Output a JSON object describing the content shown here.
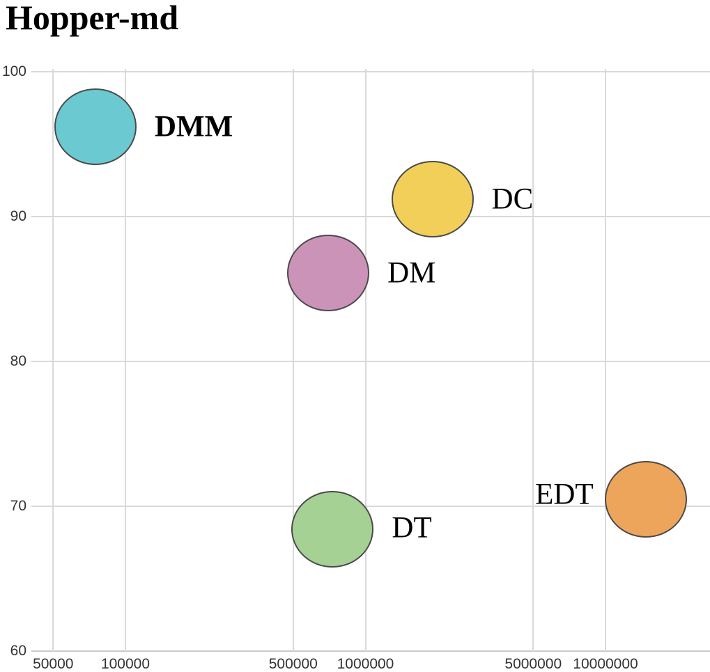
{
  "page": {
    "title": "Hopper-md"
  },
  "colors": {
    "background": "#ffffff",
    "grid": "#d9d9d9",
    "axis_line": "#c9c9c9",
    "tick_text": "#333333",
    "title_text": "#000000",
    "bubble_border": "#4a4a4a",
    "bubble_label_text": "#000000"
  },
  "chart_data": {
    "type": "scatter",
    "title": "Hopper-md",
    "x_scale": "log",
    "y_scale": "linear",
    "xlabel": "",
    "ylabel": "",
    "xlim": [
      40000,
      27000000
    ],
    "ylim": [
      60,
      100
    ],
    "grid": true,
    "legend": false,
    "x_tick_values": [
      50000,
      100000,
      500000,
      1000000,
      5000000,
      10000000
    ],
    "x_tick_labels": [
      "50000",
      "100000",
      "500000",
      "1000000",
      "5000000",
      "10000000"
    ],
    "y_tick_values": [
      60,
      70,
      80,
      90,
      100
    ],
    "y_tick_labels": [
      "60",
      "70",
      "80",
      "90",
      "100"
    ],
    "points": [
      {
        "label": "DMM",
        "x": 75000,
        "y": 96.2,
        "color": "#6bcad1",
        "label_side": "right",
        "bold": true,
        "label_dy": 0
      },
      {
        "label": "DC",
        "x": 1900000,
        "y": 91.2,
        "color": "#f2cf58",
        "label_side": "right",
        "bold": false,
        "label_dy": 0
      },
      {
        "label": "DM",
        "x": 700000,
        "y": 86.1,
        "color": "#cc93b8",
        "label_side": "right",
        "bold": false,
        "label_dy": 0
      },
      {
        "label": "DT",
        "x": 730000,
        "y": 68.4,
        "color": "#a5d194",
        "label_side": "right",
        "bold": false,
        "label_dy": -2
      },
      {
        "label": "EDT",
        "x": 14700000,
        "y": 70.5,
        "color": "#eda55c",
        "label_side": "left",
        "bold": false,
        "label_dy": -7
      }
    ]
  }
}
